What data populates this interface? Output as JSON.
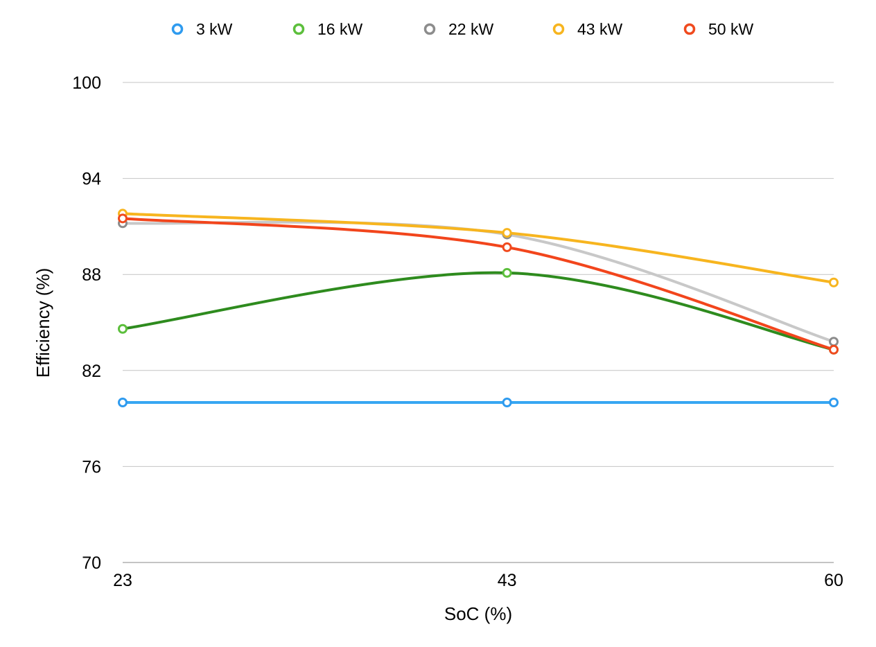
{
  "chart_data": {
    "type": "line",
    "title": "",
    "xlabel": "SoC (%)",
    "ylabel": "Efficiency (%)",
    "x": [
      23,
      43,
      60
    ],
    "x_tick_labels": [
      "23",
      "43",
      "60"
    ],
    "ylim": [
      70,
      100
    ],
    "y_ticks": [
      70,
      76,
      82,
      88,
      94,
      100
    ],
    "y_tick_labels": [
      "70",
      "76",
      "82",
      "88",
      "94",
      "100"
    ],
    "grid": "horizontal",
    "legend": "top",
    "series": [
      {
        "name": "3 kW",
        "marker_color": "#2f9bef",
        "line_color": "#36a6f2",
        "values": [
          80,
          80,
          80
        ]
      },
      {
        "name": "16 kW",
        "marker_color": "#5cbf3c",
        "line_color": "#2e8b1e",
        "values": [
          84.6,
          88.1,
          83.3
        ]
      },
      {
        "name": "22 kW",
        "marker_color": "#8c8c8c",
        "line_color": "#c8c8c8",
        "values": [
          91.2,
          90.5,
          83.8
        ]
      },
      {
        "name": "43 kW",
        "marker_color": "#f7b51f",
        "line_color": "#f7b51f",
        "values": [
          91.8,
          90.6,
          87.5
        ]
      },
      {
        "name": "50 kW",
        "marker_color": "#f04a1e",
        "line_color": "#f2451c",
        "values": [
          91.5,
          89.7,
          83.3
        ]
      }
    ]
  }
}
